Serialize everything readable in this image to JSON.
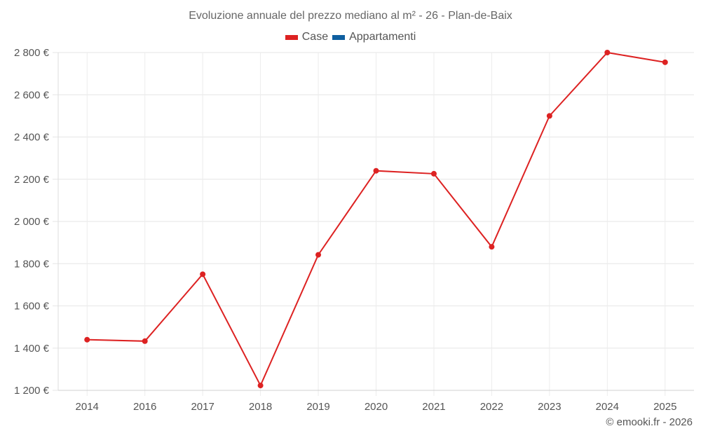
{
  "chart_data": {
    "type": "line",
    "title": "Evoluzione annuale del prezzo mediano al m² - 26 - Plan-de-Baix",
    "xlabel": "",
    "ylabel": "",
    "categories": [
      "2014",
      "2016",
      "2017",
      "2018",
      "2019",
      "2020",
      "2021",
      "2022",
      "2023",
      "2024",
      "2025"
    ],
    "series": [
      {
        "name": "Case",
        "color": "#dd2222",
        "values": [
          1440,
          1433,
          1750,
          1223,
          1842,
          2240,
          2226,
          1880,
          2500,
          2800,
          2754
        ]
      },
      {
        "name": "Appartamenti",
        "color": "#0f5fa0",
        "values": []
      }
    ],
    "y_ticks": [
      1200,
      1400,
      1600,
      1800,
      2000,
      2200,
      2400,
      2600,
      2800
    ],
    "y_tick_labels": [
      "1 200 €",
      "1 400 €",
      "1 600 €",
      "1 800 €",
      "2 000 €",
      "2 200 €",
      "2 400 €",
      "2 600 €",
      "2 800 €"
    ],
    "ylim": [
      1200,
      2800
    ],
    "grid": true,
    "legend_position": "top"
  },
  "legend": [
    {
      "label": "Case",
      "color": "#dd2222"
    },
    {
      "label": "Appartamenti",
      "color": "#0f5fa0"
    }
  ],
  "credit": "© emooki.fr - 2026"
}
